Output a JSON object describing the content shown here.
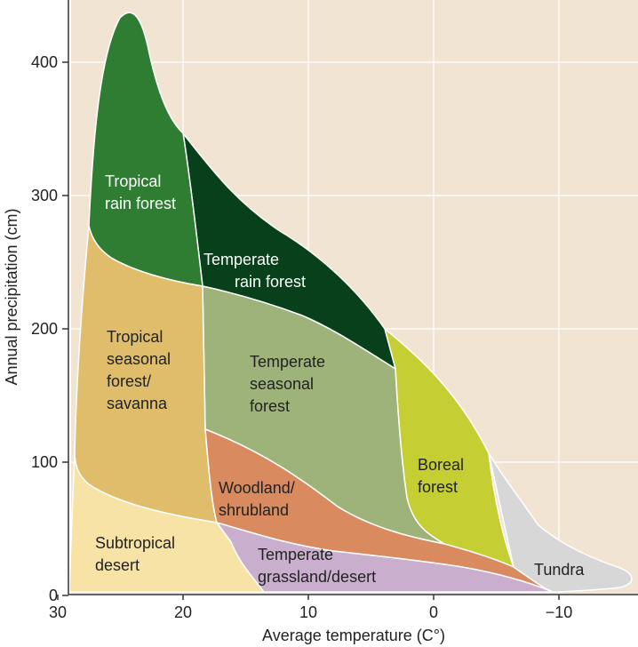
{
  "chart_data": {
    "type": "area",
    "title": "",
    "xlabel": "Average temperature (C°)",
    "ylabel": "Annual precipitation (cm)",
    "xlim": [
      30,
      -15
    ],
    "ylim": [
      0,
      440
    ],
    "x_ticks": [
      {
        "value": 30,
        "label": "30"
      },
      {
        "value": 20,
        "label": "20"
      },
      {
        "value": 10,
        "label": "10"
      },
      {
        "value": 0,
        "label": "0"
      },
      {
        "value": -10,
        "label": "−10"
      }
    ],
    "y_ticks": [
      {
        "value": 0,
        "label": "0"
      },
      {
        "value": 100,
        "label": "100"
      },
      {
        "value": 200,
        "label": "200"
      },
      {
        "value": 300,
        "label": "300"
      },
      {
        "value": 400,
        "label": "400"
      }
    ],
    "grid": true,
    "background_color": "#f2e4d3",
    "biomes": [
      {
        "key": "tropical_rain_forest",
        "lines": [
          "Tropical",
          "rain forest"
        ],
        "color": "#2f7d32",
        "text_color": "#ffffff"
      },
      {
        "key": "temperate_rain_forest",
        "lines": [
          "Temperate",
          "rain forest"
        ],
        "color": "#07401a",
        "text_color": "#ffffff"
      },
      {
        "key": "tropical_seasonal_forest_savanna",
        "lines": [
          "Tropical",
          "seasonal",
          "forest/",
          "savanna"
        ],
        "color": "#dfbd6b",
        "text_color": "#222222"
      },
      {
        "key": "temperate_seasonal_forest",
        "lines": [
          "Temperate",
          "seasonal",
          "forest"
        ],
        "color": "#9db37a",
        "text_color": "#222222"
      },
      {
        "key": "boreal_forest",
        "lines": [
          "Boreal",
          "forest"
        ],
        "color": "#c5ce33",
        "text_color": "#222222"
      },
      {
        "key": "woodland_shrubland",
        "lines": [
          "Woodland/",
          "shrubland"
        ],
        "color": "#d98a5e",
        "text_color": "#222222"
      },
      {
        "key": "subtropical_desert",
        "lines": [
          "Subtropical",
          "desert"
        ],
        "color": "#f8e3a6",
        "text_color": "#222222"
      },
      {
        "key": "temperate_grassland_desert",
        "lines": [
          "Temperate",
          "grassland/desert"
        ],
        "color": "#c9aecd",
        "text_color": "#222222"
      },
      {
        "key": "tundra",
        "lines": [
          "Tundra"
        ],
        "color": "#d7d7d7",
        "text_color": "#222222"
      }
    ]
  }
}
